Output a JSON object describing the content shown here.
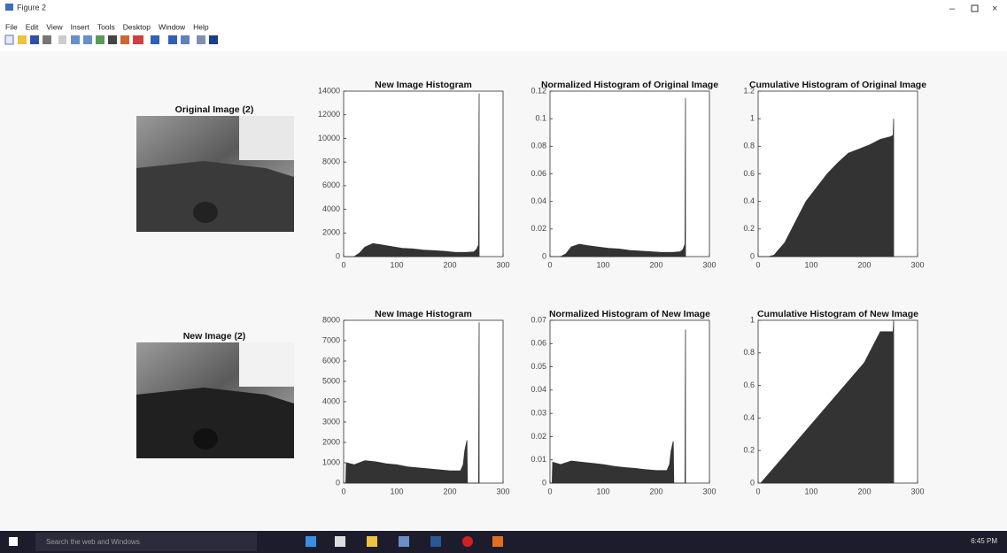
{
  "window": {
    "title": "Figure 2",
    "menu": [
      "File",
      "Edit",
      "View",
      "Insert",
      "Tools",
      "Desktop",
      "Window",
      "Help"
    ],
    "taskbar": {
      "search": "Search the web and Windows",
      "time": "6:45 PM"
    }
  },
  "images": [
    {
      "title": "Original Image (2)"
    },
    {
      "title": "New Image (2)"
    }
  ],
  "chart_data": [
    {
      "type": "area",
      "title": "New Image Histogram",
      "color": "#333333",
      "x": [
        0,
        20,
        30,
        40,
        55,
        70,
        90,
        110,
        130,
        150,
        170,
        190,
        210,
        230,
        245,
        250,
        254,
        255
      ],
      "values": [
        0,
        0,
        300,
        800,
        1100,
        1000,
        850,
        700,
        650,
        550,
        500,
        450,
        350,
        350,
        400,
        600,
        1000,
        13800
      ],
      "xlim": [
        0,
        300
      ],
      "xticks": [
        0,
        100,
        200,
        300
      ],
      "ylim": [
        0,
        14000
      ],
      "yticks": [
        0,
        2000,
        4000,
        6000,
        8000,
        10000,
        12000,
        14000
      ]
    },
    {
      "type": "area",
      "title": "Normalized Histogram of Original Image",
      "color": "#333333",
      "x": [
        0,
        20,
        30,
        40,
        55,
        70,
        90,
        110,
        130,
        150,
        170,
        190,
        210,
        230,
        245,
        250,
        254,
        255
      ],
      "values": [
        0,
        0,
        0.002,
        0.007,
        0.009,
        0.008,
        0.007,
        0.006,
        0.0055,
        0.0045,
        0.004,
        0.0035,
        0.003,
        0.003,
        0.0035,
        0.005,
        0.009,
        0.115
      ],
      "xlim": [
        0,
        300
      ],
      "xticks": [
        0,
        100,
        200,
        300
      ],
      "ylim": [
        0,
        0.12
      ],
      "yticks": [
        0,
        0.02,
        0.04,
        0.06,
        0.08,
        0.1,
        0.12
      ]
    },
    {
      "type": "area",
      "title": "Cumulative Histogram of Original Image",
      "color": "#333333",
      "x": [
        0,
        20,
        30,
        50,
        70,
        90,
        110,
        130,
        150,
        170,
        190,
        210,
        230,
        250,
        254,
        255
      ],
      "values": [
        0,
        0,
        0.01,
        0.1,
        0.25,
        0.4,
        0.5,
        0.6,
        0.68,
        0.75,
        0.78,
        0.81,
        0.85,
        0.87,
        0.88,
        1
      ],
      "xlim": [
        0,
        300
      ],
      "xticks": [
        0,
        100,
        200,
        300
      ],
      "ylim": [
        0,
        1.2
      ],
      "yticks": [
        0,
        0.2,
        0.4,
        0.6,
        0.8,
        1,
        1.2
      ]
    },
    {
      "type": "area",
      "title": "New Image Histogram",
      "color": "#333333",
      "x": [
        0,
        4,
        5,
        20,
        40,
        60,
        80,
        100,
        120,
        140,
        160,
        180,
        200,
        220,
        225,
        228,
        232,
        233,
        254,
        255
      ],
      "values": [
        0,
        0,
        1000,
        900,
        1100,
        1050,
        950,
        900,
        800,
        750,
        700,
        650,
        600,
        600,
        900,
        1600,
        2100,
        0,
        0,
        7900
      ],
      "xlim": [
        0,
        300
      ],
      "xticks": [
        0,
        100,
        200,
        300
      ],
      "ylim": [
        0,
        8000
      ],
      "yticks": [
        0,
        1000,
        2000,
        3000,
        4000,
        5000,
        6000,
        7000,
        8000
      ]
    },
    {
      "type": "area",
      "title": "Normalized Histogram of New Image",
      "color": "#333333",
      "x": [
        0,
        4,
        5,
        20,
        40,
        60,
        80,
        100,
        120,
        140,
        160,
        180,
        200,
        220,
        225,
        228,
        232,
        233,
        254,
        255
      ],
      "values": [
        0,
        0,
        0.009,
        0.008,
        0.0095,
        0.009,
        0.0085,
        0.008,
        0.0072,
        0.0067,
        0.0063,
        0.0058,
        0.0054,
        0.0054,
        0.008,
        0.014,
        0.018,
        0,
        0,
        0.066
      ],
      "xlim": [
        0,
        300
      ],
      "xticks": [
        0,
        100,
        200,
        300
      ],
      "ylim": [
        0,
        0.07
      ],
      "yticks": [
        0,
        0.01,
        0.02,
        0.03,
        0.04,
        0.05,
        0.06,
        0.07
      ]
    },
    {
      "type": "area",
      "title": "Cumulative Histogram of New Image",
      "color": "#333333",
      "x": [
        0,
        5,
        50,
        100,
        150,
        200,
        230,
        254,
        255
      ],
      "values": [
        0,
        0,
        0.17,
        0.36,
        0.55,
        0.74,
        0.93,
        0.93,
        1
      ],
      "xlim": [
        0,
        300
      ],
      "xticks": [
        0,
        100,
        200,
        300
      ],
      "ylim": [
        0,
        1
      ],
      "yticks": [
        0,
        0.2,
        0.4,
        0.6,
        0.8,
        1
      ]
    }
  ]
}
